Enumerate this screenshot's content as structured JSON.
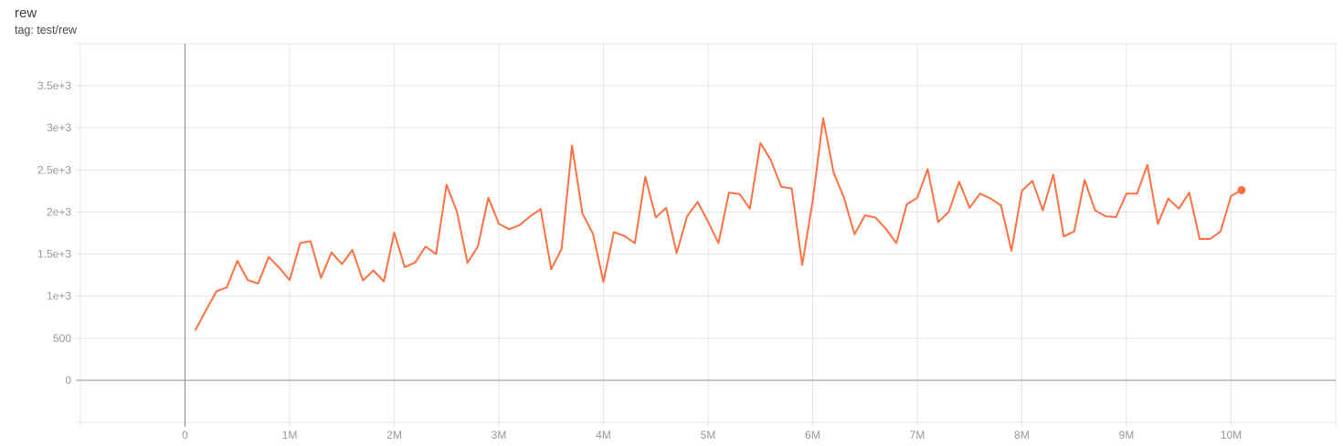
{
  "header": {
    "title": "rew",
    "subtitle": "tag: test/rew"
  },
  "colors": {
    "background": "#ffffff",
    "line": "#ff7043",
    "grid": "#e6e6e6",
    "zero_line": "#8f8f8f",
    "tick_text": "#989898",
    "title_text": "#3c4043",
    "subtitle_text": "#454a4f"
  },
  "chart_data": {
    "type": "line",
    "title": "rew",
    "subtitle": "tag: test/rew",
    "grid": true,
    "legend": "none",
    "x_axis": {
      "unit": "steps (millions)",
      "range_millions": [
        -1,
        11
      ],
      "gridline_step_millions": 1,
      "ticks": [
        {
          "value_millions": 0,
          "label": "0"
        },
        {
          "value_millions": 1,
          "label": "1M"
        },
        {
          "value_millions": 2,
          "label": "2M"
        },
        {
          "value_millions": 3,
          "label": "3M"
        },
        {
          "value_millions": 4,
          "label": "4M"
        },
        {
          "value_millions": 5,
          "label": "5M"
        },
        {
          "value_millions": 6,
          "label": "6M"
        },
        {
          "value_millions": 7,
          "label": "7M"
        },
        {
          "value_millions": 8,
          "label": "8M"
        },
        {
          "value_millions": 9,
          "label": "9M"
        },
        {
          "value_millions": 10,
          "label": "10M"
        }
      ]
    },
    "y_axis": {
      "range": [
        -500,
        4000
      ],
      "gridline_step": 500,
      "ticks": [
        {
          "value": 0,
          "label": "0"
        },
        {
          "value": 500,
          "label": "500"
        },
        {
          "value": 1000,
          "label": "1e+3"
        },
        {
          "value": 1500,
          "label": "1.5e+3"
        },
        {
          "value": 2000,
          "label": "2e+3"
        },
        {
          "value": 2500,
          "label": "2.5e+3"
        },
        {
          "value": 3000,
          "label": "3e+3"
        },
        {
          "value": 3500,
          "label": "3.5e+3"
        }
      ]
    },
    "series": [
      {
        "name": "test/rew",
        "color": "#ff7043",
        "end_marker": true,
        "x_step_millions": [
          0.1,
          0.2,
          0.3,
          0.4,
          0.5,
          0.6,
          0.7,
          0.8,
          0.9,
          1.0,
          1.1,
          1.2,
          1.3,
          1.4,
          1.5,
          1.6,
          1.7,
          1.8,
          1.9,
          2.0,
          2.1,
          2.2,
          2.3,
          2.4,
          2.5,
          2.6,
          2.7,
          2.8,
          2.9,
          3.0,
          3.1,
          3.2,
          3.3,
          3.4,
          3.5,
          3.6,
          3.7,
          3.8,
          3.9,
          4.0,
          4.1,
          4.2,
          4.3,
          4.4,
          4.5,
          4.6,
          4.7,
          4.8,
          4.9,
          5.0,
          5.1,
          5.2,
          5.3,
          5.4,
          5.5,
          5.6,
          5.7,
          5.8,
          5.9,
          6.0,
          6.1,
          6.2,
          6.3,
          6.4,
          6.5,
          6.6,
          6.7,
          6.8,
          6.9,
          7.0,
          7.1,
          7.2,
          7.3,
          7.4,
          7.5,
          7.6,
          7.7,
          7.8,
          7.9,
          8.0,
          8.1,
          8.2,
          8.3,
          8.4,
          8.5,
          8.6,
          8.7,
          8.8,
          8.9,
          9.0,
          9.1,
          9.2,
          9.3,
          9.4,
          9.5,
          9.6,
          9.7,
          9.8,
          9.9,
          10.0,
          10.1
        ],
        "values": [
          600,
          830,
          1055,
          1105,
          1420,
          1190,
          1150,
          1465,
          1340,
          1190,
          1630,
          1655,
          1215,
          1520,
          1380,
          1550,
          1185,
          1305,
          1175,
          1755,
          1345,
          1400,
          1590,
          1500,
          2325,
          2000,
          1395,
          1590,
          2170,
          1860,
          1795,
          1845,
          1950,
          2035,
          1320,
          1560,
          2790,
          1980,
          1740,
          1170,
          1760,
          1715,
          1630,
          2420,
          1935,
          2050,
          1510,
          1950,
          2120,
          1885,
          1630,
          2230,
          2215,
          2040,
          2820,
          2620,
          2300,
          2280,
          1370,
          2130,
          3115,
          2470,
          2170,
          1735,
          1960,
          1935,
          1800,
          1630,
          2090,
          2170,
          2510,
          1880,
          2000,
          2360,
          2050,
          2220,
          2160,
          2080,
          1540,
          2250,
          2370,
          2020,
          2445,
          1710,
          1770,
          2380,
          2020,
          1950,
          1940,
          2220,
          2220,
          2560,
          1860,
          2160,
          2040,
          2230,
          1680,
          1680,
          1770,
          2190,
          2260
        ]
      }
    ]
  }
}
